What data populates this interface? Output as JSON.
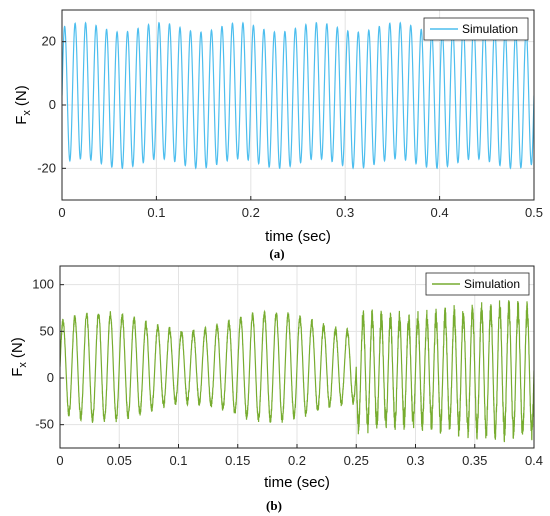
{
  "chart_data": [
    {
      "type": "line",
      "caption": "(a)",
      "xlabel": "time (sec)",
      "ylabel": "F",
      "ylabel_sub": "x",
      "ylabel_unit": "(N)",
      "xlim": [
        0,
        0.5
      ],
      "ylim": [
        -30,
        30
      ],
      "xticks": [
        0,
        0.1,
        0.2,
        0.3,
        0.4,
        0.5
      ],
      "xtick_labels": [
        "0",
        "0.1",
        "0.2",
        "0.3",
        "0.4",
        "0.5"
      ],
      "yticks": [
        -20,
        0,
        20
      ],
      "ytick_labels": [
        "-20",
        "0",
        "20"
      ],
      "grid": true,
      "legend_position": "top-right",
      "series": [
        {
          "name": "Simulation",
          "color": "#4DBEEE",
          "signal": {
            "offset": 3,
            "amplitude": 21.5,
            "frequency_hz": 90,
            "beat_amplitude": 1.5,
            "beat_frequency_hz": 12,
            "duration": 0.5
          }
        }
      ]
    },
    {
      "type": "line",
      "caption": "(b)",
      "xlabel": "time (sec)",
      "ylabel": "F",
      "ylabel_sub": "x",
      "ylabel_unit": "(N)",
      "xlim": [
        0,
        0.4
      ],
      "ylim": [
        -75,
        120
      ],
      "xticks": [
        0,
        0.05,
        0.1,
        0.15,
        0.2,
        0.25,
        0.3,
        0.35,
        0.4
      ],
      "xtick_labels": [
        "0",
        "0.05",
        "0.1",
        "0.15",
        "0.2",
        "0.25",
        "0.3",
        "0.35",
        "0.4"
      ],
      "yticks": [
        -50,
        0,
        50,
        100
      ],
      "ytick_labels": [
        "-50",
        "0",
        "50",
        "100"
      ],
      "grid": true,
      "legend_position": "top-right",
      "series": [
        {
          "name": "Simulation",
          "color": "#77AC30",
          "signal": {
            "segments": [
              {
                "t_start": 0,
                "t_end": 0.25,
                "frequency_hz": 100,
                "offset": 12,
                "amplitude": 47,
                "envelope_amp": 10,
                "envelope_freq_hz": 7,
                "chatter": 8
              },
              {
                "t_start": 0.25,
                "t_end": 0.4,
                "frequency_hz": 130,
                "offset": 8,
                "amplitude": 60,
                "envelope_amp": 6,
                "envelope_freq_hz": 6,
                "chatter": 22
              }
            ]
          }
        }
      ]
    }
  ]
}
